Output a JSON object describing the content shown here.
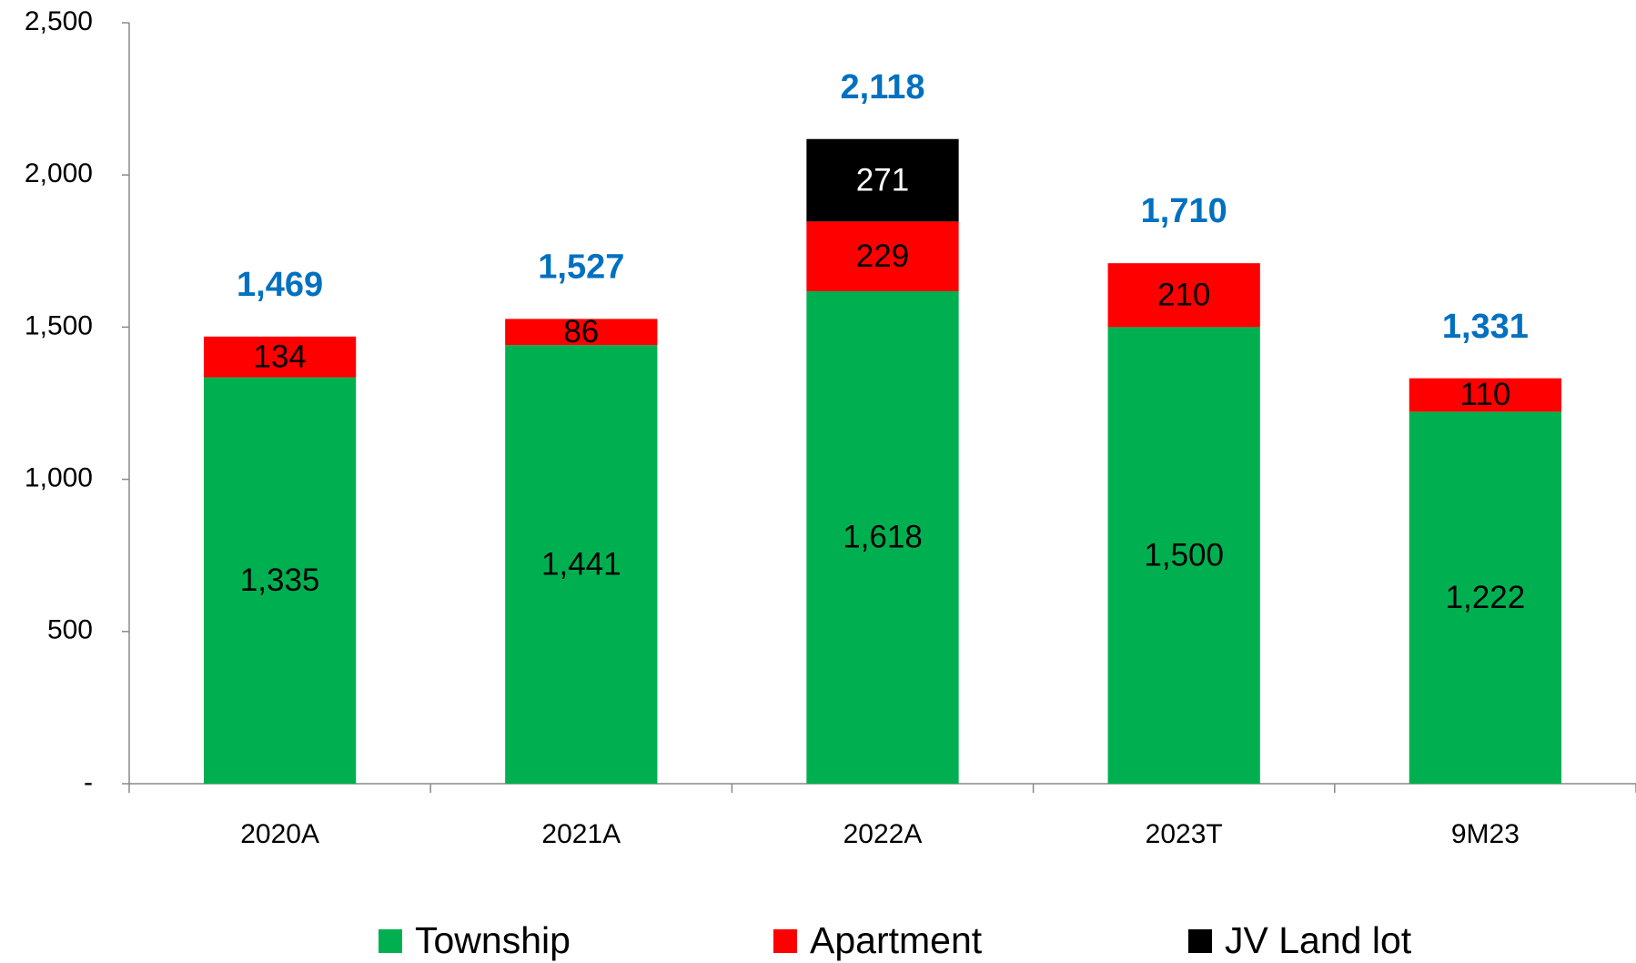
{
  "chart_data": {
    "type": "stacked_bar",
    "categories": [
      "2020A",
      "2021A",
      "2022A",
      "2023T",
      "9M23"
    ],
    "series": [
      {
        "name": "Township",
        "color": "#00B050",
        "values": [
          1335,
          1441,
          1618,
          1500,
          1222
        ],
        "value_labels": [
          "1,335",
          "1,441",
          "1,618",
          "1,500",
          "1,222"
        ],
        "label_color": "#000000"
      },
      {
        "name": "Apartment",
        "color": "#FF0000",
        "values": [
          134,
          86,
          229,
          210,
          110
        ],
        "label_color": "#000000"
      },
      {
        "name": "JV Land lot",
        "color": "#000000",
        "values": [
          null,
          null,
          271,
          null,
          null
        ],
        "label_color": "#FFFFFF"
      }
    ],
    "totals": [
      1469,
      1527,
      2118,
      1710,
      1331
    ],
    "total_labels": [
      "1,469",
      "1,527",
      "2,118",
      "1,710",
      "1,331"
    ],
    "total_color": "#0070C0",
    "ylim": [
      0,
      2500
    ],
    "yticks": [
      {
        "value": 0,
        "label": "-"
      },
      500,
      {
        "value": 1000,
        "label": "1,000"
      },
      {
        "value": 1500,
        "label": "1,500"
      },
      {
        "value": 2000,
        "label": "2,000"
      },
      {
        "value": 2500,
        "label": "2,500"
      }
    ],
    "grid": false,
    "legend": "bottom"
  }
}
